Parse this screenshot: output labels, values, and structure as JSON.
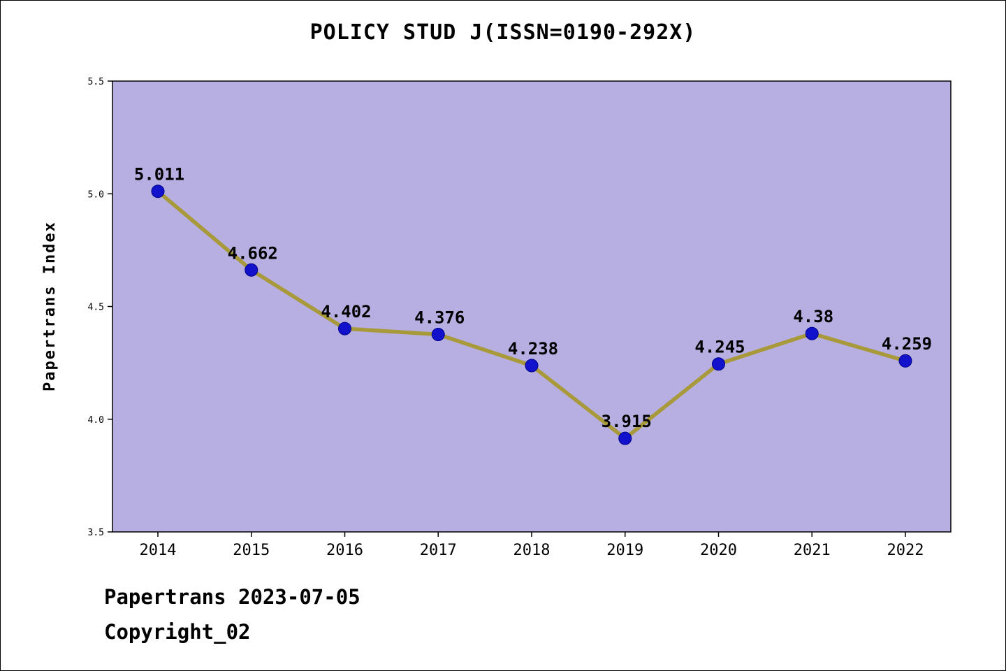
{
  "title": "POLICY STUD J(ISSN=0190-292X)",
  "footer": {
    "line1": "Papertrans 2023-07-05",
    "line2": "Copyright_02"
  },
  "chart_data": {
    "type": "line",
    "title": "POLICY STUD J(ISSN=0190-292X)",
    "xlabel": "",
    "ylabel": "Papertrans Index",
    "categories": [
      "2014",
      "2015",
      "2016",
      "2017",
      "2018",
      "2019",
      "2020",
      "2021",
      "2022"
    ],
    "values": [
      5.011,
      4.662,
      4.402,
      4.376,
      4.238,
      3.915,
      4.245,
      4.38,
      4.259
    ],
    "point_labels": [
      "5.011",
      "4.662",
      "4.402",
      "4.376",
      "4.238",
      "3.915",
      "4.245",
      "4.38",
      "4.259"
    ],
    "ylim": [
      3.5,
      5.5
    ],
    "yticks": [
      3.5,
      4.0,
      4.5,
      5.0,
      5.5
    ],
    "grid": false,
    "legend": null,
    "colors": {
      "plot_bg": "#b7aee1",
      "line": "#a89a3a",
      "marker": "#1212cc",
      "marker_edge": "#00008b",
      "axis": "#000000"
    }
  }
}
